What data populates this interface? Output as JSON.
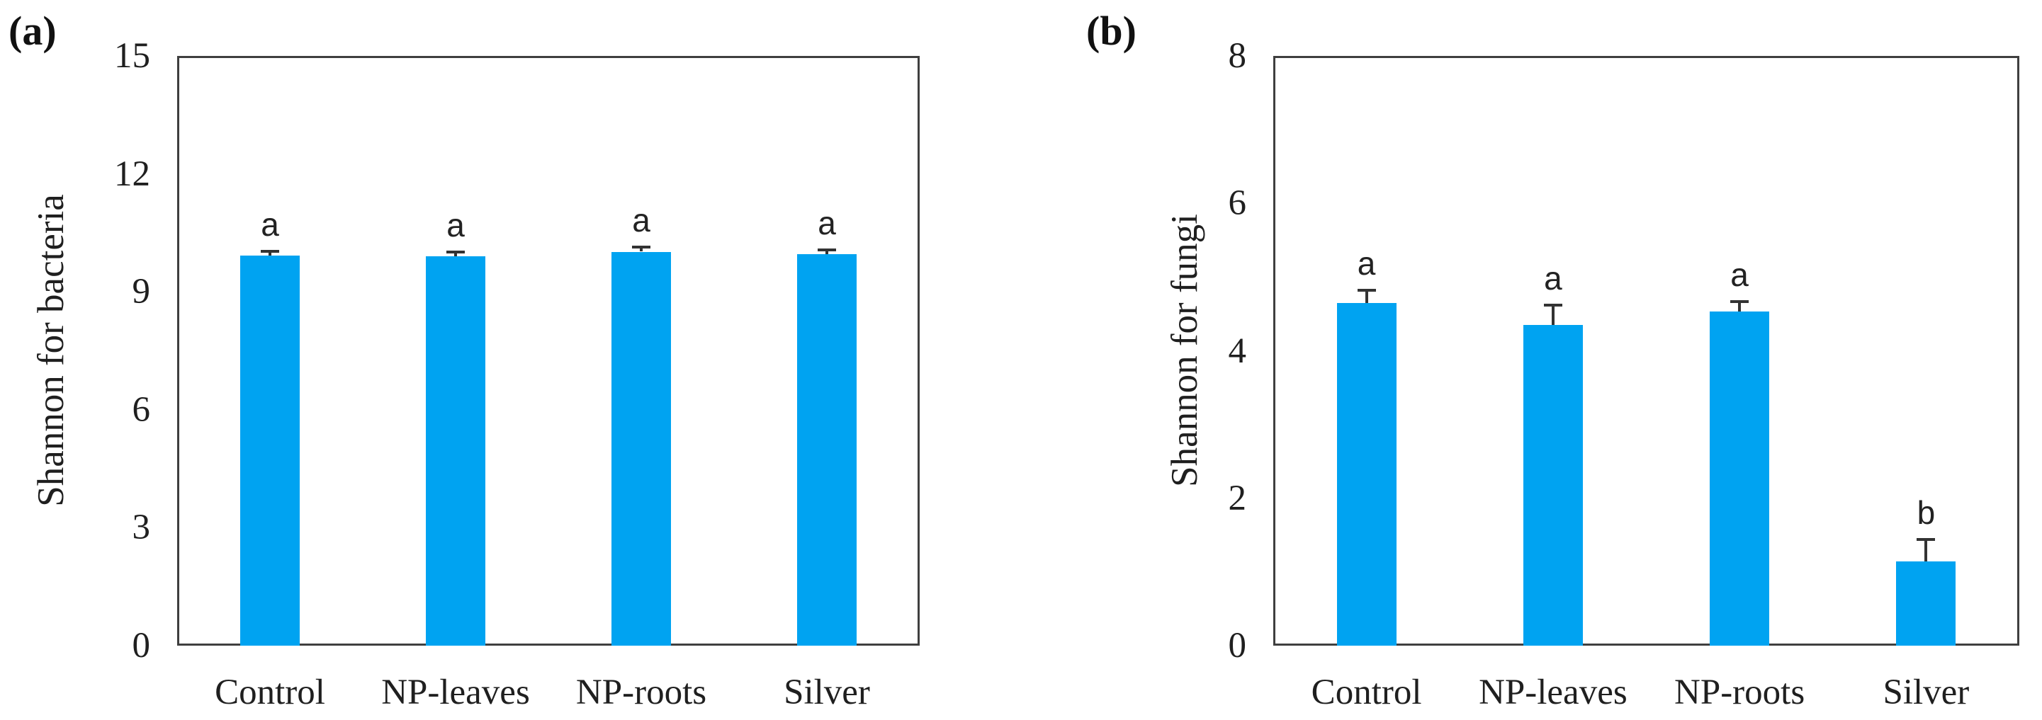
{
  "figure": {
    "background_color": "#ffffff",
    "axis_box_color": "#3f3f3f",
    "text_color": "#1f1f1f",
    "error_bar_color": "#333333"
  },
  "chart_data": [
    {
      "type": "bar",
      "panel_label": "(a)",
      "title": "",
      "ylabel": "Shannon for bacteria",
      "xlabel": "",
      "categories": [
        "Control",
        "NP-leaves",
        "NP-roots",
        "Silver"
      ],
      "values": [
        9.92,
        9.9,
        10.02,
        9.95
      ],
      "errors_upper": [
        0.08,
        0.08,
        0.08,
        0.08
      ],
      "sig_letters": [
        "a",
        "a",
        "a",
        "a"
      ],
      "ylim": [
        0,
        15
      ],
      "yticks": [
        0,
        3,
        6,
        9,
        12,
        15
      ],
      "bar_color": "#00A3F1",
      "grid": false,
      "legend": false
    },
    {
      "type": "bar",
      "panel_label": "(b)",
      "title": "",
      "ylabel": "Shannon for fungi",
      "xlabel": "",
      "categories": [
        "Control",
        "NP-leaves",
        "NP-roots",
        "Silver"
      ],
      "values": [
        4.65,
        4.35,
        4.53,
        1.14
      ],
      "errors_upper": [
        0.15,
        0.25,
        0.12,
        0.28
      ],
      "sig_letters": [
        "a",
        "a",
        "a",
        "b"
      ],
      "ylim": [
        0,
        8
      ],
      "yticks": [
        0,
        2,
        4,
        6,
        8
      ],
      "bar_color": "#00A3F1",
      "grid": false,
      "legend": false
    }
  ]
}
